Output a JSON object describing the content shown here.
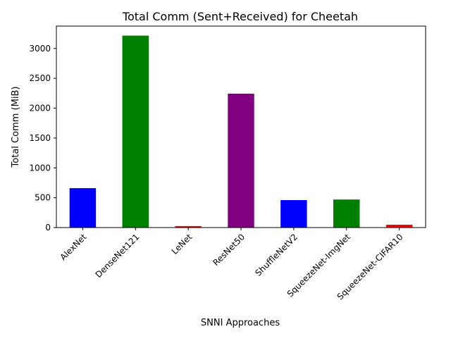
{
  "chart_data": {
    "type": "bar",
    "title": "Total Comm (Sent+Received) for Cheetah",
    "xlabel": "SNNI Approaches",
    "ylabel": "Total Comm (MiB)",
    "categories": [
      "AlexNet",
      "DenseNet121",
      "LeNet",
      "ResNet50",
      "ShuffleNetV2",
      "SqueezeNet-ImgNet",
      "SqueezeNet-CIFAR10"
    ],
    "values": [
      660,
      3215,
      25,
      2243,
      460,
      470,
      48
    ],
    "colors": [
      "#0000ff",
      "#008000",
      "#ff0000",
      "#800080",
      "#0000ff",
      "#008000",
      "#ff0000"
    ],
    "ylim": [
      0,
      3375
    ],
    "yticks": [
      0,
      500,
      1000,
      1500,
      2000,
      2500,
      3000
    ],
    "grid": false,
    "legend": "none"
  }
}
